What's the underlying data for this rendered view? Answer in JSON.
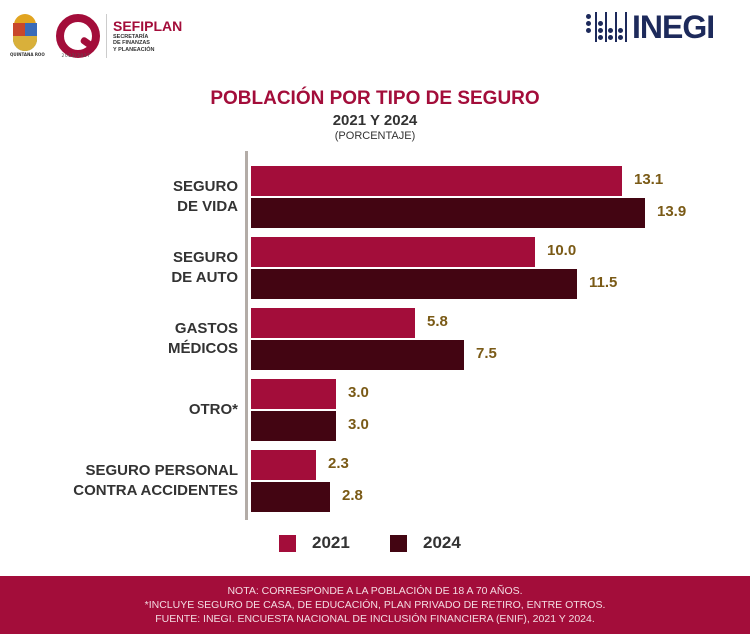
{
  "header": {
    "state_caption": "QUINTANA ROO",
    "q_logo_years": "2022|2027",
    "sefiplan_name": "SEFIPLAN",
    "sefiplan_sub": [
      "SECRETARÍA",
      "DE FINANZAS",
      "Y PLANEACIÓN"
    ],
    "inegi_name": "INEGI"
  },
  "colors": {
    "series_2021": "#a30d3a",
    "series_2024": "#430512",
    "value_label": "#7a5a16",
    "footer_bg": "#a30d3a",
    "title": "#a30d3a"
  },
  "chart_data": {
    "type": "bar",
    "orientation": "horizontal",
    "title": "POBLACIÓN POR TIPO DE SEGURO",
    "subtitle": "2021 Y 2024",
    "unit_label": "(PORCENTAJE)",
    "categories": [
      "SEGURO\nDE VIDA",
      "SEGURO\nDE AUTO",
      "GASTOS\nMÉDICOS",
      "OTRO*",
      "SEGURO PERSONAL\nCONTRA ACCIDENTES"
    ],
    "series": [
      {
        "name": "2021",
        "values": [
          13.1,
          10.0,
          5.8,
          3.0,
          2.3
        ],
        "labels": [
          "13.1",
          "10.0",
          "5.8",
          "3.0",
          "2.3"
        ]
      },
      {
        "name": "2024",
        "values": [
          13.9,
          11.5,
          7.5,
          3.0,
          2.8
        ],
        "labels": [
          "13.9",
          "11.5",
          "7.5",
          "3.0",
          "2.8"
        ]
      }
    ],
    "xlim": [
      0,
      14
    ],
    "grid": false,
    "legend": "bottom"
  },
  "footer": {
    "lines": [
      "NOTA: CORRESPONDE A LA POBLACIÓN DE 18 A 70 AÑOS.",
      "*INCLUYE SEGURO DE CASA, DE EDUCACIÓN, PLAN PRIVADO DE RETIRO, ENTRE OTROS.",
      "FUENTE: INEGI. ENCUESTA NACIONAL DE INCLUSIÓN FINANCIERA (ENIF), 2021 Y 2024."
    ]
  }
}
